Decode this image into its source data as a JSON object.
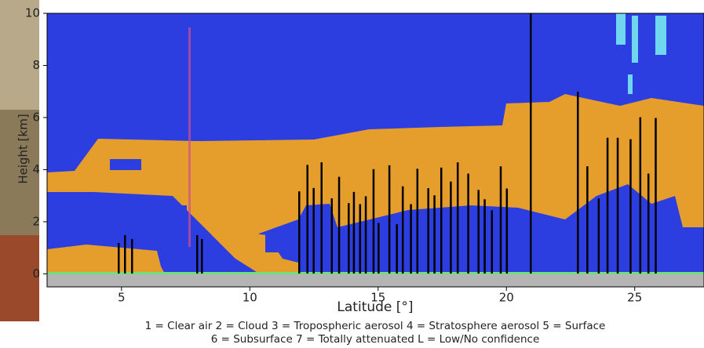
{
  "chart_data": {
    "type": "image",
    "xlabel": "Latitude [°]",
    "ylabel": "Height [km]",
    "xlim": [
      2.1,
      27.7
    ],
    "ylim": [
      -0.5,
      10
    ],
    "xticks": [
      5,
      10,
      15,
      20,
      25
    ],
    "yticks": [
      0,
      2,
      4,
      6,
      8,
      10
    ],
    "annotations": [
      "1 = Clear air   2 = Cloud   3 = Tropospheric aerosol   4 = Stratosphere aerosol   5 = Surface",
      "6 = Subsurface   7 = Totally attenuated   L = Low/No confidence"
    ]
  }
}
